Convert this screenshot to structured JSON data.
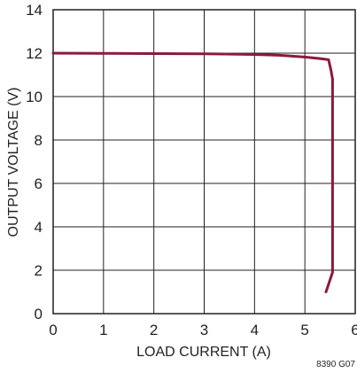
{
  "chart_data": {
    "type": "line",
    "xlabel": "LOAD CURRENT (A)",
    "ylabel": "OUTPUT VOLTAGE (V)",
    "xlim": [
      0,
      6
    ],
    "ylim": [
      0,
      14
    ],
    "x_ticks": [
      0,
      1,
      2,
      3,
      4,
      5,
      6
    ],
    "y_ticks": [
      0,
      2,
      4,
      6,
      8,
      10,
      12,
      14
    ],
    "grid": true,
    "series_color": "#8b1a3a",
    "series": [
      {
        "x": [
          0,
          1,
          2,
          3,
          4,
          4.5,
          5,
          5.3,
          5.47,
          5.52,
          5.55,
          5.55,
          5.55,
          5.55,
          5.55,
          5.55,
          5.55,
          5.55,
          5.42
        ],
        "y": [
          12.0,
          11.99,
          11.98,
          11.97,
          11.94,
          11.9,
          11.82,
          11.75,
          11.7,
          11.2,
          10.8,
          9,
          7,
          5,
          4,
          3,
          2.5,
          1.9,
          1.0
        ]
      }
    ],
    "figure_id": "8390 G07"
  }
}
